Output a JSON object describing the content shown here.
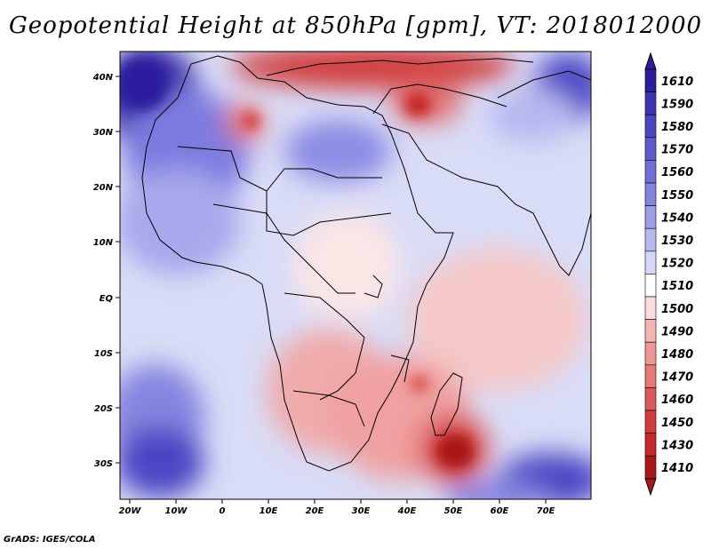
{
  "title": "Geopotential Height at 850hPa [gpm], VT: 2018012000",
  "footer": "GrADS: IGES/COLA",
  "map": {
    "lon_range": [
      -22,
      80
    ],
    "lat_range": [
      -37,
      45
    ],
    "lat_ticks": [
      "40N",
      "30N",
      "20N",
      "10N",
      "EQ",
      "10S",
      "20S",
      "30S"
    ],
    "lon_ticks": [
      "20W",
      "10W",
      "0",
      "10E",
      "20E",
      "30E",
      "40E",
      "50E",
      "60E",
      "70E"
    ]
  },
  "colorbar": {
    "levels": [
      "1610",
      "1590",
      "1580",
      "1570",
      "1560",
      "1550",
      "1540",
      "1530",
      "1520",
      "1510",
      "1500",
      "1490",
      "1480",
      "1470",
      "1460",
      "1450",
      "1430",
      "1410"
    ],
    "colors": [
      "#2c1d9e",
      "#3c32b4",
      "#4b46c4",
      "#5d5bd0",
      "#6f6fd8",
      "#8585e0",
      "#9e9ee8",
      "#b8b8f0",
      "#d6d6f8",
      "#ffffff",
      "#fadcdc",
      "#f5b4b4",
      "#ee9696",
      "#e67878",
      "#dc5a5a",
      "#d23c3c",
      "#c42828",
      "#a81818"
    ]
  }
}
